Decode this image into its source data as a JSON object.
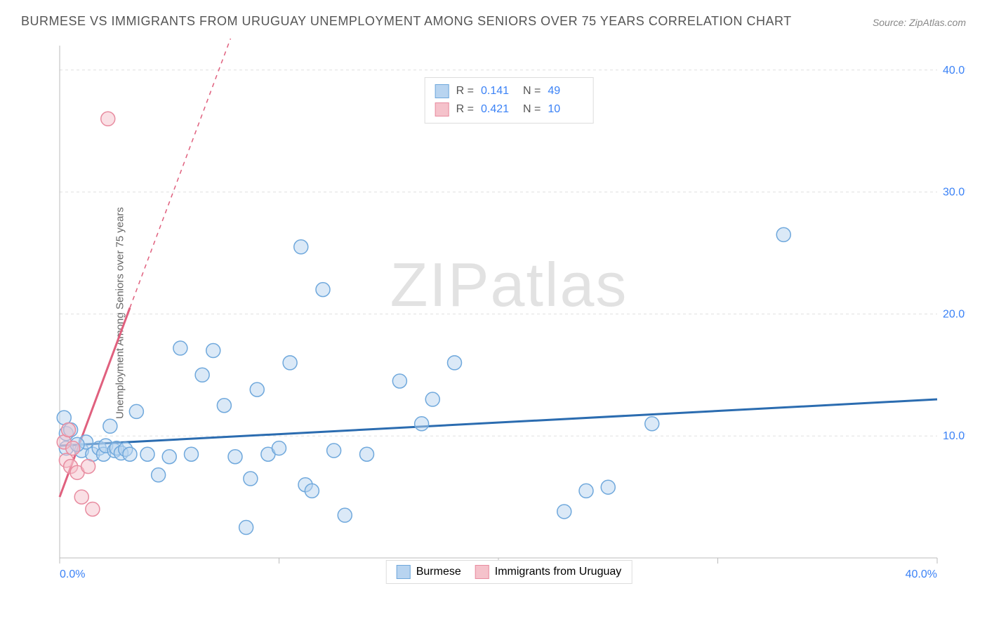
{
  "title": "BURMESE VS IMMIGRANTS FROM URUGUAY UNEMPLOYMENT AMONG SENIORS OVER 75 YEARS CORRELATION CHART",
  "source": "Source: ZipAtlas.com",
  "y_axis_label": "Unemployment Among Seniors over 75 years",
  "watermark": "ZIPatlas",
  "chart": {
    "type": "scatter",
    "xlim": [
      0,
      40
    ],
    "ylim": [
      0,
      42
    ],
    "x_ticks": [
      0,
      10,
      20,
      30,
      40
    ],
    "y_ticks": [
      10,
      20,
      30,
      40
    ],
    "x_tick_labels": [
      "0.0%",
      "",
      "",
      "",
      "40.0%"
    ],
    "y_tick_labels": [
      "10.0%",
      "20.0%",
      "30.0%",
      "40.0%"
    ],
    "grid_color": "#e0e0e0",
    "axis_color": "#bbbbbb",
    "tick_label_color": "#3b82f6",
    "tick_label_fontsize": 16
  },
  "series": [
    {
      "name": "Burmese",
      "R": "0.141",
      "N": "49",
      "marker_fill": "#b8d4f0",
      "marker_stroke": "#6fa8dc",
      "marker_fill_opacity": 0.5,
      "marker_r": 10,
      "swatch_fill": "#b8d4f0",
      "swatch_border": "#6fa8dc",
      "trend": {
        "x1": 0,
        "y1": 9.2,
        "x2": 40,
        "y2": 13.0,
        "color": "#2b6cb0",
        "width": 3
      },
      "points": [
        {
          "x": 0.2,
          "y": 11.5
        },
        {
          "x": 0.3,
          "y": 10.2
        },
        {
          "x": 0.3,
          "y": 9.0
        },
        {
          "x": 0.5,
          "y": 10.5
        },
        {
          "x": 1.0,
          "y": 8.8
        },
        {
          "x": 1.2,
          "y": 9.5
        },
        {
          "x": 1.5,
          "y": 8.5
        },
        {
          "x": 1.8,
          "y": 9.0
        },
        {
          "x": 2.0,
          "y": 8.5
        },
        {
          "x": 2.1,
          "y": 9.2
        },
        {
          "x": 2.3,
          "y": 10.8
        },
        {
          "x": 2.5,
          "y": 8.8
        },
        {
          "x": 2.6,
          "y": 9.0
        },
        {
          "x": 2.8,
          "y": 8.6
        },
        {
          "x": 3.0,
          "y": 8.9
        },
        {
          "x": 3.2,
          "y": 8.5
        },
        {
          "x": 3.5,
          "y": 12.0
        },
        {
          "x": 4.0,
          "y": 8.5
        },
        {
          "x": 4.5,
          "y": 6.8
        },
        {
          "x": 5.0,
          "y": 8.3
        },
        {
          "x": 5.5,
          "y": 17.2
        },
        {
          "x": 6.0,
          "y": 8.5
        },
        {
          "x": 6.5,
          "y": 15.0
        },
        {
          "x": 7.0,
          "y": 17.0
        },
        {
          "x": 7.5,
          "y": 12.5
        },
        {
          "x": 8.0,
          "y": 8.3
        },
        {
          "x": 8.5,
          "y": 2.5
        },
        {
          "x": 8.7,
          "y": 6.5
        },
        {
          "x": 9.0,
          "y": 13.8
        },
        {
          "x": 9.5,
          "y": 8.5
        },
        {
          "x": 10.0,
          "y": 9.0
        },
        {
          "x": 10.5,
          "y": 16.0
        },
        {
          "x": 11.0,
          "y": 25.5
        },
        {
          "x": 11.2,
          "y": 6.0
        },
        {
          "x": 11.5,
          "y": 5.5
        },
        {
          "x": 12.0,
          "y": 22.0
        },
        {
          "x": 12.5,
          "y": 8.8
        },
        {
          "x": 13.0,
          "y": 3.5
        },
        {
          "x": 14.0,
          "y": 8.5
        },
        {
          "x": 15.5,
          "y": 14.5
        },
        {
          "x": 16.5,
          "y": 11.0
        },
        {
          "x": 17.0,
          "y": 13.0
        },
        {
          "x": 18.0,
          "y": 16.0
        },
        {
          "x": 23.0,
          "y": 3.8
        },
        {
          "x": 24.0,
          "y": 5.5
        },
        {
          "x": 25.0,
          "y": 5.8
        },
        {
          "x": 27.0,
          "y": 11.0
        },
        {
          "x": 33.0,
          "y": 26.5
        },
        {
          "x": 0.8,
          "y": 9.3
        }
      ]
    },
    {
      "name": "Immigrants from Uruguay",
      "R": "0.421",
      "N": "10",
      "marker_fill": "#f5c2cb",
      "marker_stroke": "#e88ca0",
      "marker_fill_opacity": 0.5,
      "marker_r": 10,
      "swatch_fill": "#f5c2cb",
      "swatch_border": "#e88ca0",
      "trend": {
        "x1": 0,
        "y1": 5.0,
        "x2": 3.2,
        "y2": 20.5,
        "color": "#e0607e",
        "width": 3,
        "dash_after_x": 3.2,
        "dash_to": {
          "x": 8.5,
          "y": 46
        }
      },
      "points": [
        {
          "x": 0.2,
          "y": 9.5
        },
        {
          "x": 0.3,
          "y": 8.0
        },
        {
          "x": 0.4,
          "y": 10.5
        },
        {
          "x": 0.5,
          "y": 7.5
        },
        {
          "x": 0.6,
          "y": 9.0
        },
        {
          "x": 0.8,
          "y": 7.0
        },
        {
          "x": 1.0,
          "y": 5.0
        },
        {
          "x": 1.5,
          "y": 4.0
        },
        {
          "x": 1.3,
          "y": 7.5
        },
        {
          "x": 2.2,
          "y": 36.0
        }
      ]
    }
  ],
  "stats_labels": {
    "R": "R =",
    "N": "N ="
  },
  "legend": {
    "items": [
      {
        "label": "Burmese",
        "fill": "#b8d4f0",
        "border": "#6fa8dc"
      },
      {
        "label": "Immigrants from Uruguay",
        "fill": "#f5c2cb",
        "border": "#e88ca0"
      }
    ]
  }
}
